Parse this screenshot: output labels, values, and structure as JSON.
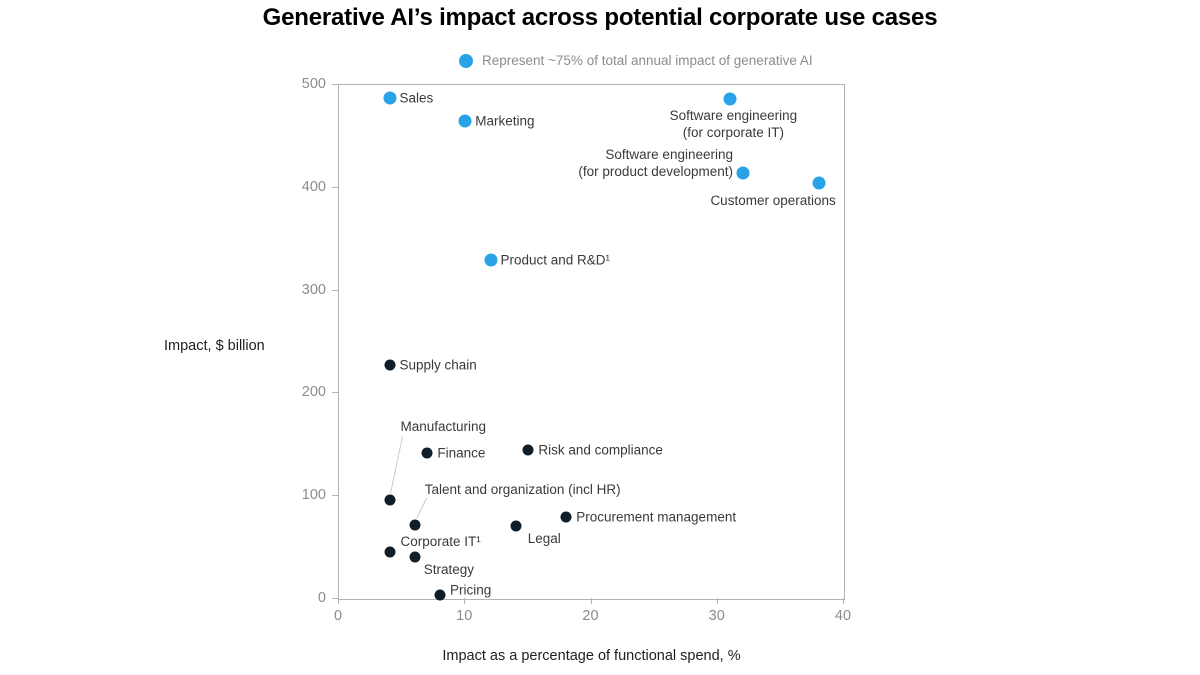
{
  "title": "Generative AI’s impact across potential corporate use cases",
  "legend": {
    "marker": "blue-dot",
    "text": "Represent ~75% of total annual impact of generative AI"
  },
  "axes": {
    "y_title": "Impact, $ billion",
    "x_title": "Impact as a percentage of functional spend, %",
    "x_ticks": [
      0,
      10,
      20,
      30,
      40
    ],
    "y_ticks": [
      0,
      100,
      200,
      300,
      400,
      500
    ]
  },
  "colors": {
    "highlight_dot": "#29a3e8",
    "other_dot": "#0e1e2b",
    "axis_line": "#b3b3b3",
    "tick_label": "#8c8c8c",
    "data_label": "#3a3a3a",
    "legend_text": "#8c8c8c",
    "leader_line": "#c9c9c9"
  },
  "chart_data": {
    "type": "scatter",
    "title": "Generative AI’s impact across potential corporate use cases",
    "xlabel": "Impact as a percentage of functional spend, %",
    "ylabel": "Impact, $ billion",
    "xlim": [
      0,
      40
    ],
    "ylim": [
      0,
      500
    ],
    "grid": false,
    "legend_position": "top",
    "legend_entries": [
      "Represent ~75% of total annual impact of generative AI"
    ],
    "points": [
      {
        "label": "Sales",
        "x": 4,
        "y": 487,
        "highlight": true
      },
      {
        "label": "Marketing",
        "x": 10,
        "y": 465,
        "highlight": true
      },
      {
        "label": "Software engineering (for corporate IT)",
        "x": 31,
        "y": 486,
        "highlight": true
      },
      {
        "label": "Software engineering (for product development)",
        "x": 32,
        "y": 414,
        "highlight": true
      },
      {
        "label": "Customer operations",
        "x": 38,
        "y": 405,
        "highlight": true
      },
      {
        "label": "Product and R&D¹",
        "x": 12,
        "y": 330,
        "highlight": true
      },
      {
        "label": "Supply chain",
        "x": 4,
        "y": 228,
        "highlight": false
      },
      {
        "label": "Finance",
        "x": 7,
        "y": 142,
        "highlight": false
      },
      {
        "label": "Risk and compliance",
        "x": 15,
        "y": 145,
        "highlight": false
      },
      {
        "label": "Manufacturing",
        "x": 4,
        "y": 96,
        "highlight": false
      },
      {
        "label": "Talent and organization (incl HR)",
        "x": 6,
        "y": 72,
        "highlight": false
      },
      {
        "label": "Procurement management",
        "x": 18,
        "y": 80,
        "highlight": false
      },
      {
        "label": "Legal",
        "x": 14,
        "y": 71,
        "highlight": false
      },
      {
        "label": "Corporate IT¹",
        "x": 4,
        "y": 46,
        "highlight": false
      },
      {
        "label": "Strategy",
        "x": 6,
        "y": 41,
        "highlight": false
      },
      {
        "label": "Pricing",
        "x": 8,
        "y": 4,
        "highlight": false
      }
    ]
  }
}
